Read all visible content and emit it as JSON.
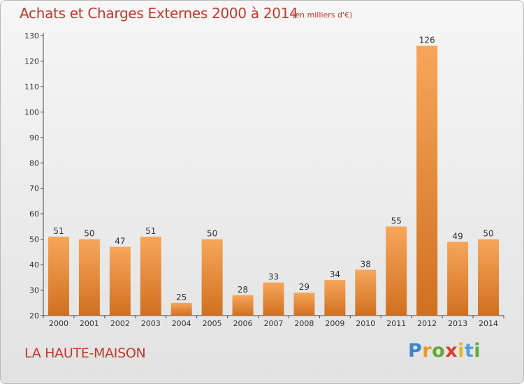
{
  "chart_data": {
    "type": "bar",
    "title": "Achats et Charges Externes 2000 à 2014",
    "subtitle": "(en milliers d'€)",
    "xlabel": "",
    "ylabel": "",
    "categories": [
      "2000",
      "2001",
      "2002",
      "2003",
      "2004",
      "2005",
      "2006",
      "2007",
      "2008",
      "2009",
      "2010",
      "2011",
      "2012",
      "2013",
      "2014"
    ],
    "values": [
      51,
      50,
      47,
      51,
      25,
      50,
      28,
      33,
      29,
      34,
      38,
      55,
      126,
      49,
      50
    ],
    "ylim": [
      20,
      130
    ],
    "yticks": [
      20,
      30,
      40,
      50,
      60,
      70,
      80,
      90,
      100,
      110,
      120,
      130
    ],
    "grid": false,
    "bar_color": "#e8852f",
    "bar_color_light": "#f7a65a",
    "bar_color_dark": "#d07020"
  },
  "footer": {
    "place": "LA HAUTE-MAISON",
    "logo": {
      "letters": [
        "P",
        "r",
        "o",
        "x",
        "i",
        "t",
        "i"
      ],
      "colors": [
        "#3f86c7",
        "#e59b2a",
        "#63a83a",
        "#d93f2f",
        "#e5b72a",
        "#4a9fd8",
        "#63a83a"
      ]
    }
  }
}
